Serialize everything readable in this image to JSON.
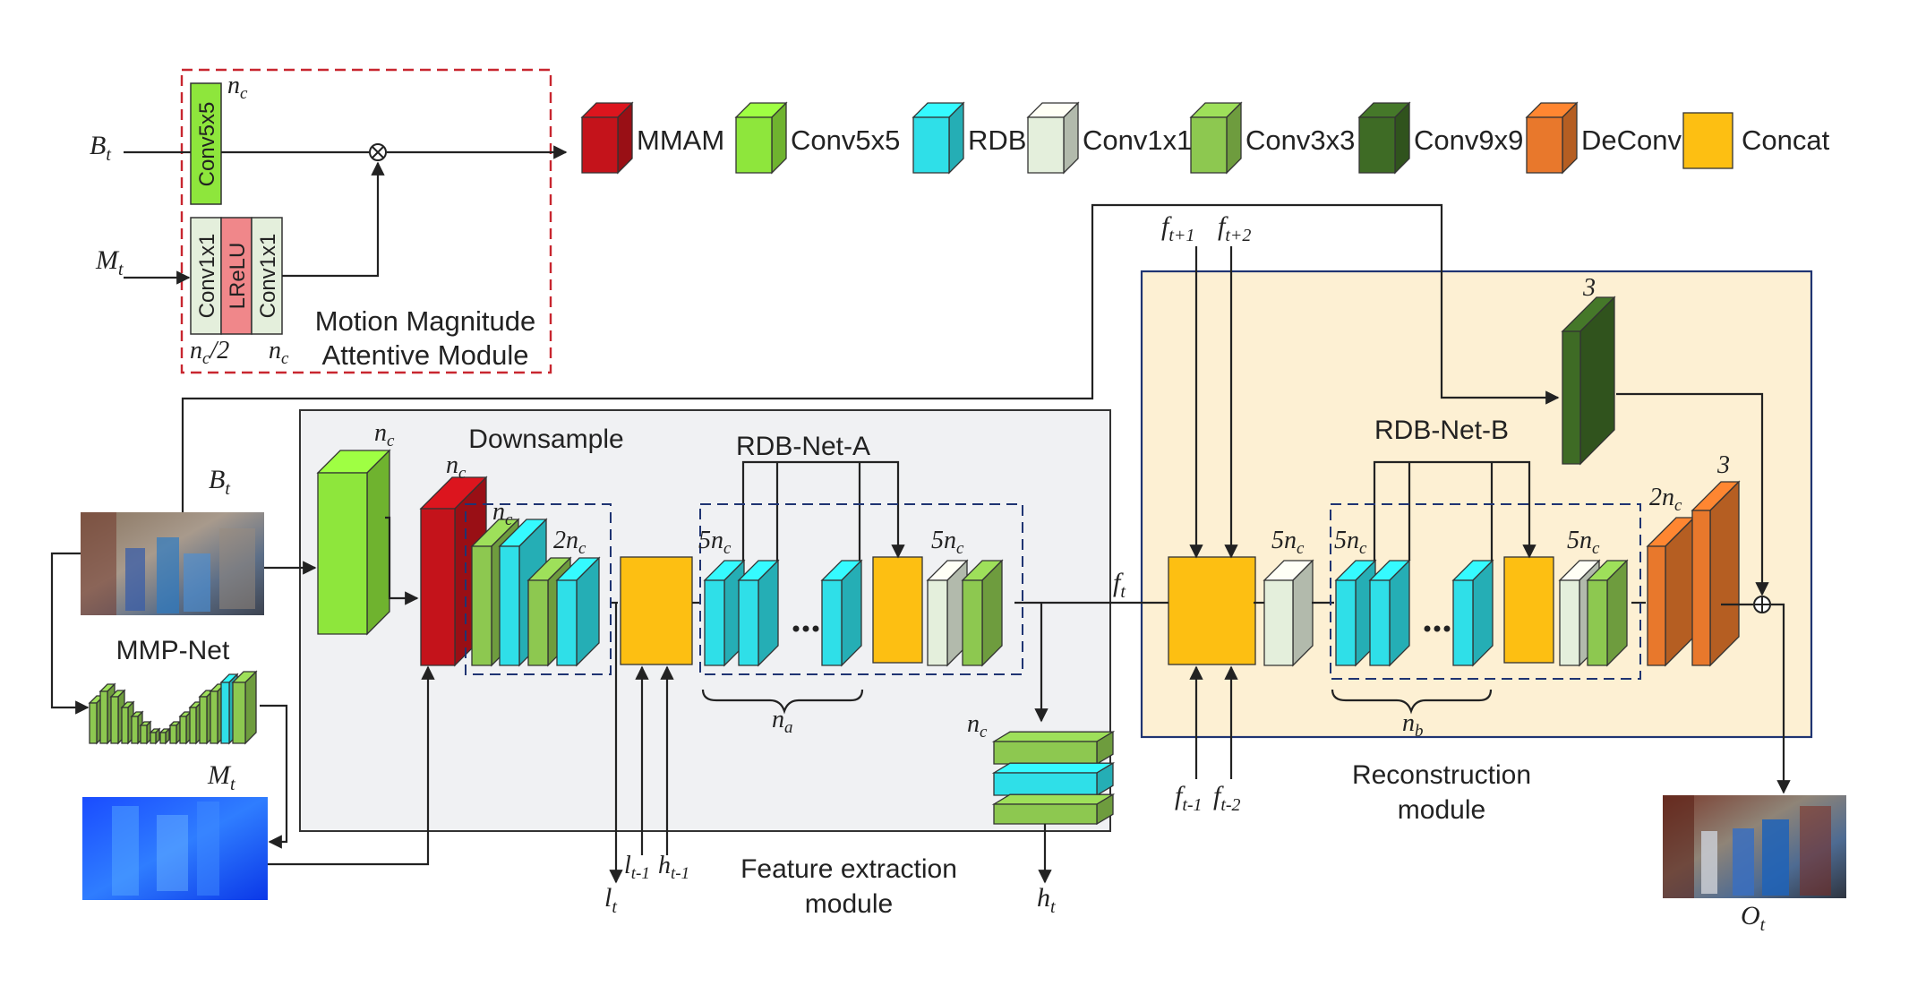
{
  "legend": {
    "items": [
      {
        "label": "MMAM",
        "color": "#c4131b"
      },
      {
        "label": "Conv5x5",
        "color": "#8ee63c"
      },
      {
        "label": "RDB",
        "color": "#2fdfe8"
      },
      {
        "label": "Conv1x1",
        "color": "#e4efdc"
      },
      {
        "label": "Conv3x3",
        "color": "#8dc850"
      },
      {
        "label": "Conv9x9",
        "color": "#3e6b25"
      },
      {
        "label": "DeConv",
        "color": "#e8782c"
      },
      {
        "label": "Concat",
        "color": "#fdbf12"
      }
    ]
  },
  "mmam": {
    "title_line1": "Motion Magnitude",
    "title_line2": "Attentive Module",
    "conv5": "Conv5x5",
    "conv1a": "Conv1x1",
    "lrelu": "LReLU",
    "conv1b": "Conv1x1",
    "b_input": "B",
    "b_sub": "t",
    "m_input": "M",
    "m_sub": "t",
    "nc_top": "n",
    "nc_top_sub": "c",
    "nc_half": "n",
    "nc_half_sub": "c",
    "nc_half_suffix": "/2",
    "nc_right": "n",
    "nc_right_sub": "c"
  },
  "feature": {
    "label_line1": "Feature extraction",
    "label_line2": "module",
    "downsample": "Downsample",
    "rdbnet_a": "RDB-Net-A",
    "mmpnet": "MMP-Net",
    "nc1": "n",
    "nc1_sub": "c",
    "nc2": "n",
    "nc2_sub": "c",
    "nc3": "n",
    "nc3_sub": "c",
    "two_nc": "2n",
    "two_nc_sub": "c",
    "five_nc_a1": "5n",
    "five_nc_a1_sub": "c",
    "five_nc_a2": "5n",
    "five_nc_a2_sub": "c",
    "na": "n",
    "na_sub": "a",
    "nc_stack": "n",
    "nc_stack_sub": "c",
    "bt": "B",
    "bt_sub": "t",
    "mt": "M",
    "mt_sub": "t",
    "lt": "l",
    "lt_sub": "t",
    "lt1": "l",
    "lt1_sub": "t-1",
    "ht1": "h",
    "ht1_sub": "t-1",
    "ht": "h",
    "ht_sub": "t",
    "ft": "f",
    "ft_sub": "t"
  },
  "recon": {
    "label_line1": "Reconstruction",
    "label_line2": "module",
    "rdbnet_b": "RDB-Net-B",
    "ftp1": "f",
    "ftp1_sub": "t+1",
    "ftp2": "f",
    "ftp2_sub": "t+2",
    "ftm1": "f",
    "ftm1_sub": "t-1",
    "ftm2": "f",
    "ftm2_sub": "t-2",
    "five_nc_b0": "5n",
    "five_nc_b0_sub": "c",
    "five_nc_b1": "5n",
    "five_nc_b1_sub": "c",
    "five_nc_b2": "5n",
    "five_nc_b2_sub": "c",
    "nb": "n",
    "nb_sub": "b",
    "two_nc": "2n",
    "two_nc_sub": "c",
    "three_a": "3",
    "three_b": "3",
    "ot": "O",
    "ot_sub": "t"
  }
}
